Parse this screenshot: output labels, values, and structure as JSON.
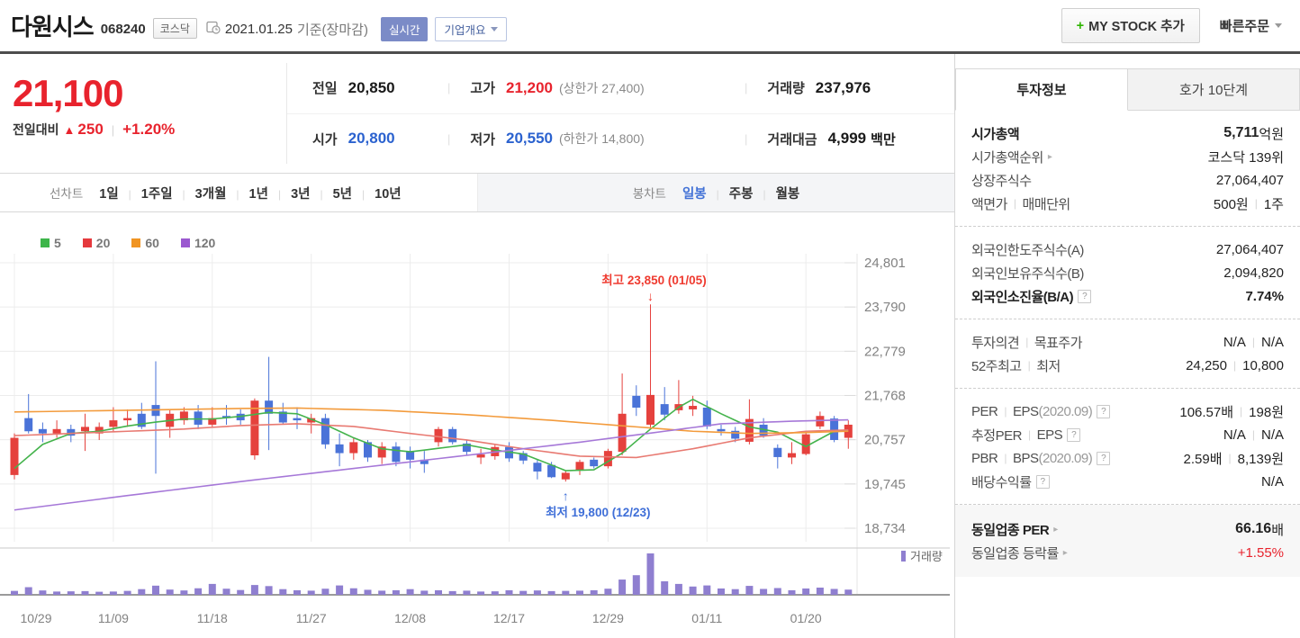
{
  "header": {
    "stock_name": "다원시스",
    "stock_code": "068240",
    "market_badge": "코스닥",
    "date": "2021.01.25",
    "date_suffix": "기준(장마감)",
    "realtime_badge": "실시간",
    "company_overview_button": "기업개요",
    "my_stock_plus": "+",
    "my_stock_label": "MY STOCK 추가",
    "quick_order": "빠른주문"
  },
  "price": {
    "current": "21,100",
    "change_label": "전일대비",
    "change_arrow": "▲",
    "change_value": "250",
    "change_percent": "+1.20%",
    "table": {
      "prev_label": "전일",
      "prev": "20,850",
      "high_label": "고가",
      "high": "21,200",
      "upper_limit": "(상한가 27,400)",
      "volume_label": "거래량",
      "volume": "237,976",
      "open_label": "시가",
      "open": "20,800",
      "low_label": "저가",
      "low": "20,550",
      "lower_limit": "(하한가 14,800)",
      "amount_label": "거래대금",
      "amount": "4,999",
      "amount_unit": "백만"
    }
  },
  "chart_tabs": {
    "line_label": "선차트",
    "line_items": [
      "1일",
      "1주일",
      "3개월",
      "1년",
      "3년",
      "5년",
      "10년"
    ],
    "candle_label": "봉차트",
    "candle_items": [
      "일봉",
      "주봉",
      "월봉"
    ],
    "selected": "일봉"
  },
  "chart_data": {
    "type": "candlestick+volume",
    "ma_legend": [
      {
        "label": "5",
        "color": "#3db54a"
      },
      {
        "label": "20",
        "color": "#e5393d"
      },
      {
        "label": "60",
        "color": "#f09422"
      },
      {
        "label": "120",
        "color": "#9b59d0"
      }
    ],
    "y_ticks": [
      "24,801",
      "23,790",
      "22,779",
      "21,768",
      "20,757",
      "19,745",
      "18,734"
    ],
    "y_tick_values": [
      24801,
      23790,
      22779,
      21768,
      20757,
      19745,
      18734
    ],
    "x_ticks": [
      {
        "label": "10/29",
        "idx": 0
      },
      {
        "label": "11/09",
        "idx": 7
      },
      {
        "label": "11/18",
        "idx": 14
      },
      {
        "label": "11/27",
        "idx": 21
      },
      {
        "label": "12/08",
        "idx": 28
      },
      {
        "label": "12/17",
        "idx": 35
      },
      {
        "label": "12/29",
        "idx": 42
      },
      {
        "label": "01/11",
        "idx": 49
      },
      {
        "label": "01/20",
        "idx": 56
      }
    ],
    "annotations": {
      "high": {
        "text": "최고 23,850 (01/05)",
        "idx": 45,
        "value": 23850,
        "color": "#ef3b30",
        "arrow": "↓"
      },
      "low": {
        "text": "최저 19,800 (12/23)",
        "idx": 39,
        "value": 19800,
        "color": "#3f6fd8",
        "arrow": "↑"
      }
    },
    "volume_legend": "거래량",
    "colors": {
      "up": "#e5413d",
      "down": "#4a73d8",
      "volume": "#8f7fd0",
      "grid": "#ececec",
      "axis_text": "#828282"
    },
    "candles": [
      [
        19950,
        20900,
        19850,
        20800
      ],
      [
        21250,
        21800,
        20900,
        20950
      ],
      [
        21000,
        21150,
        20700,
        20900
      ],
      [
        20900,
        21200,
        20800,
        21000
      ],
      [
        21000,
        21100,
        20700,
        20850
      ],
      [
        20950,
        21350,
        20500,
        21050
      ],
      [
        20900,
        21150,
        20750,
        21050
      ],
      [
        21050,
        21500,
        20950,
        21200
      ],
      [
        21200,
        21450,
        21050,
        21250
      ],
      [
        21350,
        21600,
        21000,
        21050
      ],
      [
        21550,
        22550,
        19980,
        21300
      ],
      [
        21050,
        21450,
        20800,
        21350
      ],
      [
        21200,
        21500,
        21100,
        21400
      ],
      [
        21400,
        21550,
        21000,
        21100
      ],
      [
        21100,
        21500,
        21050,
        21250
      ],
      [
        21300,
        21550,
        21100,
        21250
      ],
      [
        21350,
        21450,
        21100,
        21200
      ],
      [
        20400,
        21700,
        20300,
        21650
      ],
      [
        21650,
        22650,
        20520,
        21350
      ],
      [
        21400,
        21600,
        21100,
        21150
      ],
      [
        21250,
        21500,
        21000,
        21200
      ],
      [
        21150,
        21350,
        20900,
        21250
      ],
      [
        21250,
        21350,
        20550,
        20650
      ],
      [
        20650,
        20900,
        20150,
        20450
      ],
      [
        20450,
        20800,
        20300,
        20700
      ],
      [
        20700,
        20750,
        20250,
        20350
      ],
      [
        20350,
        20700,
        20200,
        20600
      ],
      [
        20600,
        20700,
        20150,
        20250
      ],
      [
        20500,
        20600,
        20100,
        20300
      ],
      [
        20300,
        20500,
        20000,
        20200
      ],
      [
        20700,
        21050,
        20600,
        21000
      ],
      [
        21000,
        21050,
        20650,
        20700
      ],
      [
        20670,
        20750,
        20400,
        20480
      ],
      [
        20350,
        20550,
        20200,
        20420
      ],
      [
        20380,
        20650,
        20300,
        20590
      ],
      [
        20590,
        20700,
        20250,
        20330
      ],
      [
        20450,
        20500,
        20200,
        20280
      ],
      [
        20230,
        20300,
        19850,
        20030
      ],
      [
        20180,
        20250,
        19880,
        19900
      ],
      [
        19850,
        20050,
        19800,
        20000
      ],
      [
        20050,
        20300,
        19950,
        20250
      ],
      [
        20300,
        20350,
        20100,
        20150
      ],
      [
        20150,
        20550,
        20100,
        20500
      ],
      [
        20480,
        22270,
        20400,
        21350
      ],
      [
        21760,
        22000,
        21300,
        21490
      ],
      [
        21100,
        23850,
        21000,
        21780
      ],
      [
        21570,
        21960,
        21200,
        21330
      ],
      [
        21430,
        22120,
        21350,
        21570
      ],
      [
        21450,
        21760,
        21300,
        21530
      ],
      [
        21490,
        21650,
        21000,
        21060
      ],
      [
        21000,
        21100,
        20850,
        20950
      ],
      [
        20960,
        21050,
        20700,
        20780
      ],
      [
        20710,
        21680,
        20650,
        21230
      ],
      [
        21100,
        21250,
        20800,
        20850
      ],
      [
        20570,
        20650,
        20100,
        20360
      ],
      [
        20350,
        20700,
        20200,
        20450
      ],
      [
        20430,
        20950,
        20400,
        20880
      ],
      [
        21060,
        21400,
        21000,
        21300
      ],
      [
        21240,
        21300,
        20700,
        20750
      ],
      [
        20800,
        21200,
        20550,
        21100
      ]
    ],
    "volumes": [
      180000,
      350000,
      200000,
      150000,
      160000,
      170000,
      140000,
      150000,
      180000,
      260000,
      420000,
      240000,
      200000,
      300000,
      500000,
      280000,
      220000,
      450000,
      400000,
      260000,
      210000,
      190000,
      280000,
      430000,
      300000,
      230000,
      190000,
      210000,
      260000,
      190000,
      210000,
      170000,
      190000,
      150000,
      160000,
      210000,
      180000,
      200000,
      170000,
      180000,
      190000,
      210000,
      280000,
      700000,
      900000,
      1900000,
      620000,
      500000,
      380000,
      430000,
      290000,
      260000,
      410000,
      270000,
      310000,
      210000,
      290000,
      330000,
      270000,
      238000
    ],
    "ma_lines": [
      {
        "name": "ma5",
        "color": "#44b34c",
        "points": [
          [
            0,
            20100
          ],
          [
            2,
            20650
          ],
          [
            4,
            20900
          ],
          [
            6,
            20950
          ],
          [
            8,
            21070
          ],
          [
            10,
            21160
          ],
          [
            12,
            21230
          ],
          [
            14,
            21230
          ],
          [
            16,
            21290
          ],
          [
            18,
            21380
          ],
          [
            20,
            21350
          ],
          [
            22,
            21100
          ],
          [
            24,
            20800
          ],
          [
            26,
            20550
          ],
          [
            28,
            20480
          ],
          [
            30,
            20560
          ],
          [
            32,
            20640
          ],
          [
            34,
            20520
          ],
          [
            36,
            20430
          ],
          [
            38,
            20180
          ],
          [
            39,
            20050
          ],
          [
            41,
            20070
          ],
          [
            43,
            20450
          ],
          [
            45,
            21000
          ],
          [
            47,
            21500
          ],
          [
            48,
            21680
          ],
          [
            50,
            21350
          ],
          [
            52,
            21050
          ],
          [
            54,
            20930
          ],
          [
            56,
            20600
          ],
          [
            58,
            20950
          ],
          [
            59,
            20960
          ]
        ]
      },
      {
        "name": "ma20",
        "color": "#e87a72",
        "points": [
          [
            0,
            20850
          ],
          [
            4,
            20900
          ],
          [
            8,
            20950
          ],
          [
            12,
            21000
          ],
          [
            16,
            21080
          ],
          [
            20,
            21120
          ],
          [
            24,
            21060
          ],
          [
            28,
            20900
          ],
          [
            32,
            20750
          ],
          [
            36,
            20550
          ],
          [
            40,
            20380
          ],
          [
            44,
            20350
          ],
          [
            48,
            20550
          ],
          [
            52,
            20800
          ],
          [
            56,
            20950
          ],
          [
            59,
            20980
          ]
        ]
      },
      {
        "name": "ma60",
        "color": "#f39b3c",
        "points": [
          [
            0,
            21390
          ],
          [
            8,
            21430
          ],
          [
            16,
            21470
          ],
          [
            20,
            21480
          ],
          [
            26,
            21430
          ],
          [
            32,
            21330
          ],
          [
            38,
            21200
          ],
          [
            44,
            21050
          ],
          [
            48,
            20950
          ],
          [
            52,
            20900
          ],
          [
            56,
            20920
          ],
          [
            59,
            20950
          ]
        ]
      },
      {
        "name": "ma120",
        "color": "#a678d8",
        "points": [
          [
            0,
            19150
          ],
          [
            8,
            19480
          ],
          [
            16,
            19800
          ],
          [
            24,
            20100
          ],
          [
            32,
            20400
          ],
          [
            40,
            20700
          ],
          [
            46,
            20950
          ],
          [
            50,
            21120
          ],
          [
            55,
            21180
          ],
          [
            59,
            21210
          ]
        ]
      }
    ]
  },
  "sidebar": {
    "tabs": [
      {
        "label": "투자정보",
        "active": true
      },
      {
        "label": "호가 10단계",
        "active": false
      }
    ],
    "groups": [
      {
        "rows": [
          {
            "label": [
              {
                "t": "시가총액",
                "b": true
              }
            ],
            "value": [
              {
                "t": "5,711",
                "b": true,
                "big": true
              },
              {
                "t": "억원"
              }
            ]
          },
          {
            "label": [
              {
                "t": "시가총액순위"
              }
            ],
            "arrow": true,
            "value": [
              {
                "t": "코스닥 139위"
              }
            ]
          },
          {
            "label": [
              {
                "t": "상장주식수"
              }
            ],
            "value": [
              {
                "t": "27,064,407"
              }
            ]
          },
          {
            "label": [
              {
                "t": "액면가"
              },
              {
                "sep": true
              },
              {
                "t": "매매단위"
              }
            ],
            "value": [
              {
                "t": "500원"
              },
              {
                "sep": true
              },
              {
                "t": "1주"
              }
            ]
          }
        ]
      },
      {
        "rows": [
          {
            "label": [
              {
                "t": "외국인한도주식수(A)"
              }
            ],
            "value": [
              {
                "t": "27,064,407"
              }
            ]
          },
          {
            "label": [
              {
                "t": "외국인보유주식수(B)"
              }
            ],
            "value": [
              {
                "t": "2,094,820"
              }
            ]
          },
          {
            "label": [
              {
                "t": "외국인소진율(B/A)",
                "b": true
              }
            ],
            "help": true,
            "value": [
              {
                "t": "7.74%",
                "b": true
              }
            ]
          }
        ]
      },
      {
        "rows": [
          {
            "label": [
              {
                "t": "투자의견"
              },
              {
                "sep": true
              },
              {
                "t": "목표주가"
              }
            ],
            "value": [
              {
                "t": "N/A"
              },
              {
                "sep": true
              },
              {
                "t": "N/A"
              }
            ]
          },
          {
            "label": [
              {
                "t": "52주최고"
              },
              {
                "sep": true
              },
              {
                "t": "최저"
              }
            ],
            "value": [
              {
                "t": "24,250"
              },
              {
                "sep": true
              },
              {
                "t": "10,800"
              }
            ]
          }
        ]
      },
      {
        "rows": [
          {
            "label": [
              {
                "t": "PER"
              },
              {
                "sep": true
              },
              {
                "t": "EPS"
              },
              {
                "t": "(2020.09)",
                "gray": true
              }
            ],
            "help": true,
            "value": [
              {
                "t": "106.57배"
              },
              {
                "sep": true
              },
              {
                "t": "198원"
              }
            ]
          },
          {
            "label": [
              {
                "t": "추정PER"
              },
              {
                "sep": true
              },
              {
                "t": "EPS"
              }
            ],
            "help": true,
            "value": [
              {
                "t": "N/A"
              },
              {
                "sep": true
              },
              {
                "t": "N/A"
              }
            ]
          },
          {
            "label": [
              {
                "t": "PBR"
              },
              {
                "sep": true
              },
              {
                "t": "BPS"
              },
              {
                "t": " (2020.09)",
                "gray": true
              }
            ],
            "help": true,
            "value": [
              {
                "t": "2.59배"
              },
              {
                "sep": true
              },
              {
                "t": "8,139원"
              }
            ]
          },
          {
            "label": [
              {
                "t": "배당수익률"
              }
            ],
            "help": true,
            "value": [
              {
                "t": "N/A"
              }
            ]
          }
        ]
      },
      {
        "gray": true,
        "rows": [
          {
            "label": [
              {
                "t": "동일업종 PER",
                "b": true
              }
            ],
            "arrow": true,
            "value": [
              {
                "t": "66.16",
                "b": true,
                "big": true
              },
              {
                "t": "배"
              }
            ]
          },
          {
            "label": [
              {
                "t": "동일업종 등락률"
              }
            ],
            "arrow": true,
            "value": [
              {
                "t": "+1.55%",
                "red": true
              }
            ]
          }
        ]
      }
    ]
  }
}
